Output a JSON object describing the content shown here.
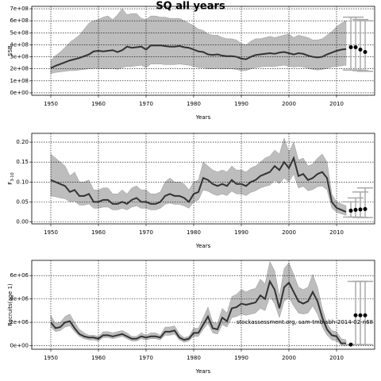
{
  "chart_data": [
    {
      "type": "band-line",
      "title": "SQ all years",
      "ylabel": "SSB",
      "xlabel": "Years",
      "xlim": [
        1946,
        2018
      ],
      "xticks": [
        1950,
        1960,
        1970,
        1980,
        1990,
        2000,
        2010
      ],
      "ylim": [
        -20000000.0,
        720000000.0
      ],
      "yticks": [
        {
          "value": 0,
          "label": "0e+00"
        },
        {
          "value": 100000000.0,
          "label": "1e+08"
        },
        {
          "value": 200000000.0,
          "label": "2e+08"
        },
        {
          "value": 300000000.0,
          "label": "3e+08"
        },
        {
          "value": 400000000.0,
          "label": "4e+08"
        },
        {
          "value": 500000000.0,
          "label": "5e+08"
        },
        {
          "value": 600000000.0,
          "label": "6e+08"
        },
        {
          "value": 700000000.0,
          "label": "7e+08"
        }
      ],
      "grid": true,
      "color": "#333333",
      "band_color": "#bdbdbd",
      "x": [
        1950,
        1951,
        1952,
        1953,
        1954,
        1955,
        1956,
        1957,
        1958,
        1959,
        1960,
        1961,
        1962,
        1963,
        1964,
        1965,
        1966,
        1967,
        1968,
        1969,
        1970,
        1971,
        1972,
        1973,
        1974,
        1975,
        1976,
        1977,
        1978,
        1979,
        1980,
        1981,
        1982,
        1983,
        1984,
        1985,
        1986,
        1987,
        1988,
        1989,
        1990,
        1991,
        1992,
        1993,
        1994,
        1995,
        1996,
        1997,
        1998,
        1999,
        2000,
        2001,
        2002,
        2003,
        2004,
        2005,
        2006,
        2007,
        2008,
        2009,
        2010,
        2011,
        2012
      ],
      "values": [
        205000000.0,
        225000000.0,
        240000000.0,
        255000000.0,
        270000000.0,
        280000000.0,
        290000000.0,
        305000000.0,
        320000000.0,
        345000000.0,
        350000000.0,
        345000000.0,
        350000000.0,
        355000000.0,
        340000000.0,
        355000000.0,
        385000000.0,
        375000000.0,
        380000000.0,
        385000000.0,
        360000000.0,
        395000000.0,
        395000000.0,
        395000000.0,
        390000000.0,
        385000000.0,
        385000000.0,
        390000000.0,
        380000000.0,
        375000000.0,
        360000000.0,
        345000000.0,
        340000000.0,
        320000000.0,
        315000000.0,
        320000000.0,
        310000000.0,
        305000000.0,
        305000000.0,
        300000000.0,
        285000000.0,
        280000000.0,
        300000000.0,
        315000000.0,
        320000000.0,
        325000000.0,
        330000000.0,
        325000000.0,
        335000000.0,
        340000000.0,
        330000000.0,
        320000000.0,
        330000000.0,
        325000000.0,
        310000000.0,
        300000000.0,
        295000000.0,
        300000000.0,
        320000000.0,
        335000000.0,
        350000000.0,
        360000000.0,
        365000000.0
      ],
      "lower": [
        160000000.0,
        170000000.0,
        175000000.0,
        180000000.0,
        185000000.0,
        185000000.0,
        190000000.0,
        195000000.0,
        200000000.0,
        205000000.0,
        205000000.0,
        200000000.0,
        200000000.0,
        205000000.0,
        195000000.0,
        210000000.0,
        220000000.0,
        220000000.0,
        225000000.0,
        230000000.0,
        210000000.0,
        240000000.0,
        240000000.0,
        240000000.0,
        235000000.0,
        235000000.0,
        235000000.0,
        240000000.0,
        235000000.0,
        230000000.0,
        220000000.0,
        210000000.0,
        210000000.0,
        200000000.0,
        200000000.0,
        205000000.0,
        200000000.0,
        200000000.0,
        200000000.0,
        195000000.0,
        185000000.0,
        185000000.0,
        200000000.0,
        210000000.0,
        215000000.0,
        220000000.0,
        220000000.0,
        220000000.0,
        225000000.0,
        230000000.0,
        220000000.0,
        215000000.0,
        220000000.0,
        215000000.0,
        205000000.0,
        195000000.0,
        190000000.0,
        195000000.0,
        205000000.0,
        215000000.0,
        220000000.0,
        225000000.0,
        230000000.0
      ],
      "upper": [
        270000000.0,
        310000000.0,
        340000000.0,
        380000000.0,
        420000000.0,
        450000000.0,
        480000000.0,
        530000000.0,
        580000000.0,
        600000000.0,
        610000000.0,
        630000000.0,
        640000000.0,
        610000000.0,
        650000000.0,
        700000000.0,
        650000000.0,
        660000000.0,
        660000000.0,
        620000000.0,
        610000000.0,
        640000000.0,
        640000000.0,
        630000000.0,
        630000000.0,
        620000000.0,
        620000000.0,
        620000000.0,
        600000000.0,
        580000000.0,
        560000000.0,
        530000000.0,
        520000000.0,
        490000000.0,
        480000000.0,
        480000000.0,
        460000000.0,
        450000000.0,
        450000000.0,
        440000000.0,
        410000000.0,
        400000000.0,
        430000000.0,
        450000000.0,
        450000000.0,
        460000000.0,
        470000000.0,
        460000000.0,
        470000000.0,
        480000000.0,
        490000000.0,
        460000000.0,
        480000000.0,
        470000000.0,
        460000000.0,
        440000000.0,
        440000000.0,
        450000000.0,
        480000000.0,
        510000000.0,
        550000000.0,
        580000000.0,
        600000000.0
      ],
      "proj": {
        "x": [
          2013,
          2014,
          2015,
          2016
        ],
        "values": [
          380000000.0,
          380000000.0,
          360000000.0,
          340000000.0
        ],
        "lower": [
          190000000.0,
          190000000.0,
          185000000.0,
          180000000.0
        ],
        "upper": [
          630000000.0,
          630000000.0,
          610000000.0,
          600000000.0
        ]
      }
    },
    {
      "type": "band-line",
      "ylabel": "F",
      "ylabel_sub": "3-10",
      "xlabel": "Years",
      "xlim": [
        1946,
        2018
      ],
      "xticks": [
        1950,
        1960,
        1970,
        1980,
        1990,
        2000,
        2010
      ],
      "ylim": [
        -0.005,
        0.222
      ],
      "yticks": [
        {
          "value": 0,
          "label": "0.00"
        },
        {
          "value": 0.05,
          "label": "0.05"
        },
        {
          "value": 0.1,
          "label": "0.10"
        },
        {
          "value": 0.15,
          "label": "0.15"
        },
        {
          "value": 0.2,
          "label": "0.20"
        }
      ],
      "grid": true,
      "color": "#333333",
      "band_color": "#bdbdbd",
      "x": [
        1950,
        1951,
        1952,
        1953,
        1954,
        1955,
        1956,
        1957,
        1958,
        1959,
        1960,
        1961,
        1962,
        1963,
        1964,
        1965,
        1966,
        1967,
        1968,
        1969,
        1970,
        1971,
        1972,
        1973,
        1974,
        1975,
        1976,
        1977,
        1978,
        1979,
        1980,
        1981,
        1982,
        1983,
        1984,
        1985,
        1986,
        1987,
        1988,
        1989,
        1990,
        1991,
        1992,
        1993,
        1994,
        1995,
        1996,
        1997,
        1998,
        1999,
        2000,
        2001,
        2002,
        2003,
        2004,
        2005,
        2006,
        2007,
        2008,
        2009,
        2010,
        2011,
        2012
      ],
      "values": [
        0.105,
        0.1,
        0.095,
        0.09,
        0.075,
        0.08,
        0.065,
        0.065,
        0.07,
        0.05,
        0.05,
        0.055,
        0.055,
        0.045,
        0.045,
        0.05,
        0.045,
        0.055,
        0.06,
        0.05,
        0.05,
        0.045,
        0.045,
        0.05,
        0.065,
        0.07,
        0.065,
        0.065,
        0.06,
        0.05,
        0.07,
        0.075,
        0.11,
        0.105,
        0.095,
        0.09,
        0.095,
        0.09,
        0.105,
        0.095,
        0.095,
        0.09,
        0.1,
        0.105,
        0.115,
        0.12,
        0.125,
        0.14,
        0.13,
        0.15,
        0.135,
        0.16,
        0.115,
        0.12,
        0.105,
        0.11,
        0.12,
        0.125,
        0.11,
        0.05,
        0.035,
        0.03,
        0.025
      ],
      "lower": [
        0.065,
        0.063,
        0.06,
        0.058,
        0.05,
        0.052,
        0.042,
        0.042,
        0.045,
        0.034,
        0.034,
        0.037,
        0.037,
        0.03,
        0.03,
        0.034,
        0.03,
        0.037,
        0.04,
        0.034,
        0.034,
        0.03,
        0.03,
        0.034,
        0.044,
        0.047,
        0.044,
        0.044,
        0.04,
        0.034,
        0.05,
        0.055,
        0.08,
        0.077,
        0.07,
        0.066,
        0.07,
        0.066,
        0.077,
        0.07,
        0.07,
        0.066,
        0.074,
        0.078,
        0.085,
        0.089,
        0.092,
        0.104,
        0.096,
        0.11,
        0.1,
        0.12,
        0.085,
        0.089,
        0.078,
        0.081,
        0.088,
        0.09,
        0.08,
        0.035,
        0.024,
        0.02,
        0.016
      ],
      "upper": [
        0.17,
        0.16,
        0.15,
        0.14,
        0.115,
        0.125,
        0.1,
        0.1,
        0.105,
        0.08,
        0.08,
        0.085,
        0.085,
        0.07,
        0.07,
        0.08,
        0.07,
        0.085,
        0.09,
        0.08,
        0.08,
        0.07,
        0.07,
        0.075,
        0.1,
        0.11,
        0.1,
        0.1,
        0.095,
        0.08,
        0.1,
        0.105,
        0.15,
        0.14,
        0.13,
        0.125,
        0.13,
        0.125,
        0.14,
        0.13,
        0.13,
        0.125,
        0.135,
        0.14,
        0.15,
        0.16,
        0.165,
        0.18,
        0.17,
        0.21,
        0.175,
        0.2,
        0.155,
        0.16,
        0.14,
        0.145,
        0.16,
        0.17,
        0.15,
        0.07,
        0.05,
        0.045,
        0.04
      ],
      "proj": {
        "x": [
          2013,
          2014,
          2015,
          2016
        ],
        "values": [
          0.028,
          0.03,
          0.031,
          0.032
        ],
        "lower": [
          0.012,
          0.012,
          0.011,
          0.011
        ],
        "upper": [
          0.05,
          0.06,
          0.075,
          0.085
        ]
      }
    },
    {
      "type": "band-line",
      "ylabel": "Recruits(age 1)",
      "xlabel": "Years",
      "annotation": "stockassessment.org, sam-tmb-sbh-2014-02-n68",
      "annotation_y": 2000000.0,
      "xlim": [
        1946,
        2018
      ],
      "xticks": [
        1950,
        1960,
        1970,
        1980,
        1990,
        2000,
        2010
      ],
      "ylim": [
        -300000.0,
        7300000.0
      ],
      "yticks": [
        {
          "value": 0,
          "label": "0e+00"
        },
        {
          "value": 2000000.0,
          "label": "2e+06"
        },
        {
          "value": 4000000.0,
          "label": "4e+06"
        },
        {
          "value": 6000000.0,
          "label": "6e+06"
        }
      ],
      "grid": true,
      "color": "#333333",
      "band_color": "#bdbdbd",
      "x": [
        1950,
        1951,
        1952,
        1953,
        1954,
        1955,
        1956,
        1957,
        1958,
        1959,
        1960,
        1961,
        1962,
        1963,
        1964,
        1965,
        1966,
        1967,
        1968,
        1969,
        1970,
        1971,
        1972,
        1973,
        1974,
        1975,
        1976,
        1977,
        1978,
        1979,
        1980,
        1981,
        1982,
        1983,
        1984,
        1985,
        1986,
        1987,
        1988,
        1989,
        1990,
        1991,
        1992,
        1993,
        1994,
        1995,
        1996,
        1997,
        1998,
        1999,
        2000,
        2001,
        2002,
        2003,
        2004,
        2005,
        2006,
        2007,
        2008,
        2009,
        2010,
        2011,
        2012
      ],
      "values": [
        2000000.0,
        1500000.0,
        1600000.0,
        2000000.0,
        2100000.0,
        1500000.0,
        1000000.0,
        800000.0,
        700000.0,
        700000.0,
        600000.0,
        900000.0,
        900000.0,
        800000.0,
        900000.0,
        1000000.0,
        800000.0,
        600000.0,
        600000.0,
        800000.0,
        700000.0,
        800000.0,
        800000.0,
        700000.0,
        1200000.0,
        1200000.0,
        1300000.0,
        700000.0,
        500000.0,
        600000.0,
        1100000.0,
        1100000.0,
        1800000.0,
        2500000.0,
        1500000.0,
        1400000.0,
        2400000.0,
        2100000.0,
        3200000.0,
        3300000.0,
        3600000.0,
        3500000.0,
        3600000.0,
        3700000.0,
        4300000.0,
        4000000.0,
        5500000.0,
        4800000.0,
        3200000.0,
        5000000.0,
        5400000.0,
        4600000.0,
        3800000.0,
        3600000.0,
        3800000.0,
        4600000.0,
        3800000.0,
        2400000.0,
        1400000.0,
        900000.0,
        800000.0,
        200000.0,
        200000.0
      ],
      "lower": [
        1600000.0,
        1200000.0,
        1300000.0,
        1600000.0,
        1700000.0,
        1200000.0,
        800000.0,
        600000.0,
        500000.0,
        500000.0,
        400000.0,
        700000.0,
        700000.0,
        600000.0,
        700000.0,
        800000.0,
        600000.0,
        400000.0,
        400000.0,
        600000.0,
        500000.0,
        600000.0,
        600000.0,
        500000.0,
        900000.0,
        900000.0,
        1000000.0,
        500000.0,
        300000.0,
        400000.0,
        800000.0,
        800000.0,
        1400000.0,
        1900000.0,
        1100000.0,
        1000000.0,
        1800000.0,
        1600000.0,
        2400000.0,
        2500000.0,
        2700000.0,
        2600000.0,
        2700000.0,
        2800000.0,
        3200000.0,
        3000000.0,
        4200000.0,
        3600000.0,
        2400000.0,
        3800000.0,
        4100000.0,
        3400000.0,
        2800000.0,
        2700000.0,
        2800000.0,
        3400000.0,
        2700000.0,
        1600000.0,
        900000.0,
        500000.0,
        400000.0,
        50000.0,
        20000.0
      ],
      "upper": [
        2600000.0,
        1900000.0,
        2000000.0,
        2500000.0,
        2700000.0,
        2000000.0,
        1400000.0,
        1100000.0,
        900000.0,
        900000.0,
        800000.0,
        1200000.0,
        1200000.0,
        1100000.0,
        1200000.0,
        1300000.0,
        1100000.0,
        800000.0,
        800000.0,
        1100000.0,
        900000.0,
        1100000.0,
        1100000.0,
        900000.0,
        1600000.0,
        1600000.0,
        1700000.0,
        1000000.0,
        700000.0,
        800000.0,
        1500000.0,
        1500000.0,
        2400000.0,
        3300000.0,
        2000000.0,
        1900000.0,
        3200000.0,
        2800000.0,
        4200000.0,
        4400000.0,
        4800000.0,
        4600000.0,
        4800000.0,
        4900000.0,
        5700000.0,
        5300000.0,
        7200000.0,
        6400000.0,
        4200000.0,
        6600000.0,
        7100000.0,
        6100000.0,
        5000000.0,
        4800000.0,
        5000000.0,
        6100000.0,
        5000000.0,
        3200000.0,
        1900000.0,
        1300000.0,
        1200000.0,
        600000.0,
        500000.0
      ],
      "proj": {
        "x": [
          2013,
          2014,
          2015,
          2016
        ],
        "values": [
          100000.0,
          2600000.0,
          2600000.0,
          2600000.0
        ],
        "lower": [
          100000.0,
          100000.0,
          100000.0,
          100000.0
        ],
        "upper": [
          100000.0,
          5500000.0,
          5500000.0,
          5500000.0
        ]
      }
    }
  ]
}
